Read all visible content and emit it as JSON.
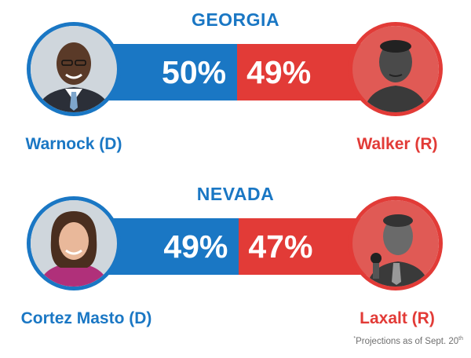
{
  "colors": {
    "dem": "#1a77c4",
    "rep": "#e23b37",
    "state_title": "#1a77c4",
    "footnote": "#6f6f6f"
  },
  "chart_data": {
    "type": "bar",
    "races": [
      {
        "state": "GEORGIA",
        "dem": {
          "name": "Warnock (D)",
          "value": 50,
          "label": "50%"
        },
        "rep": {
          "name": "Walker (R)",
          "value": 49,
          "label": "49%"
        }
      },
      {
        "state": "NEVADA",
        "dem": {
          "name": "Cortez Masto (D)",
          "value": 49,
          "label": "49%"
        },
        "rep": {
          "name": "Laxalt (R)",
          "value": 47,
          "label": "47%"
        }
      }
    ],
    "footnote": {
      "mark": "*",
      "text": "Projections as of Sept. 20",
      "suffix": "th"
    }
  }
}
